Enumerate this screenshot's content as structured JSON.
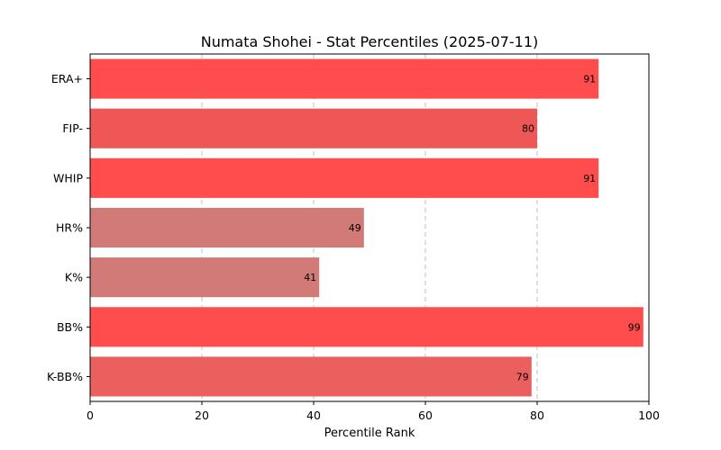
{
  "chart_data": {
    "type": "bar",
    "orientation": "horizontal",
    "title": "Numata Shohei - Stat Percentiles (2025-07-11)",
    "xlabel": "Percentile Rank",
    "ylabel": "",
    "xlim": [
      0,
      100
    ],
    "xticks": [
      0,
      20,
      40,
      60,
      80,
      100
    ],
    "grid": "vertical dashed",
    "categories": [
      "ERA+",
      "FIP-",
      "WHIP",
      "HR%",
      "K%",
      "BB%",
      "K-BB%"
    ],
    "values": [
      91,
      80,
      91,
      49,
      41,
      99,
      79
    ],
    "colors": [
      "#ff4d4d",
      "#ef5656",
      "#ff4d4d",
      "#d27a78",
      "#d27a78",
      "#ff4d4d",
      "#ec5f5f"
    ]
  }
}
